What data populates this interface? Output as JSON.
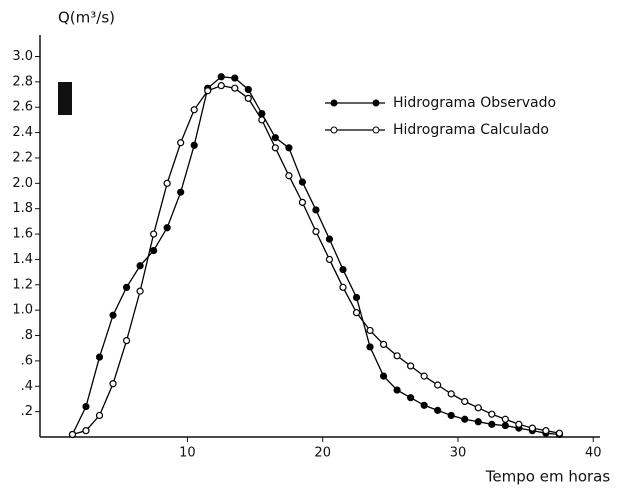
{
  "chart_data": {
    "type": "line",
    "title": "Q(m³/s)",
    "x_label": "Tempo em horas",
    "x": [
      1.5,
      2.5,
      3.5,
      4.5,
      5.5,
      6.5,
      7.5,
      8.5,
      9.5,
      10.5,
      11.5,
      12.5,
      13.5,
      14.5,
      15.5,
      16.5,
      17.5,
      18.5,
      19.5,
      20.5,
      21.5,
      22.5,
      23.5,
      24.5,
      25.5,
      26.5,
      27.5,
      28.5,
      29.5,
      30.5,
      31.5,
      32.5,
      33.5,
      34.5,
      35.5,
      36.5,
      37.5
    ],
    "series": [
      {
        "name": "Hidrograma Observado",
        "color": "#000000",
        "marker": "filled",
        "values": [
          0.02,
          0.24,
          0.63,
          0.96,
          1.18,
          1.35,
          1.47,
          1.65,
          1.93,
          2.3,
          2.75,
          2.84,
          2.83,
          2.74,
          2.55,
          2.36,
          2.28,
          2.01,
          1.79,
          1.56,
          1.32,
          1.1,
          0.71,
          0.48,
          0.37,
          0.31,
          0.25,
          0.21,
          0.17,
          0.14,
          0.12,
          0.1,
          0.09,
          0.07,
          0.05,
          0.03,
          0.02
        ]
      },
      {
        "name": "Hidrograma Calculado",
        "color": "#000000",
        "marker": "open",
        "values": [
          0.02,
          0.05,
          0.17,
          0.42,
          0.76,
          1.15,
          1.6,
          2.0,
          2.32,
          2.58,
          2.73,
          2.77,
          2.75,
          2.67,
          2.5,
          2.28,
          2.06,
          1.85,
          1.62,
          1.4,
          1.18,
          0.98,
          0.84,
          0.73,
          0.64,
          0.56,
          0.48,
          0.41,
          0.34,
          0.28,
          0.23,
          0.18,
          0.14,
          0.1,
          0.07,
          0.05,
          0.03
        ]
      }
    ],
    "xlim": [
      -0.9,
      40.5
    ],
    "xticks": [
      10,
      20,
      30,
      40
    ],
    "ylim": [
      0,
      3.13
    ],
    "yticks": [
      {
        "value": 0.2,
        "label": ".2"
      },
      {
        "value": 0.4,
        "label": ".4"
      },
      {
        "value": 0.6,
        "label": ".6"
      },
      {
        "value": 0.8,
        "label": ".8"
      },
      {
        "value": 1.0,
        "label": "1.0"
      },
      1.2,
      1.4,
      1.6,
      1.8,
      {
        "value": 2.0,
        "label": "2.0"
      },
      2.2,
      2.4,
      2.6,
      2.8,
      {
        "value": 3.0,
        "label": "3.0"
      }
    ],
    "grid": false
  }
}
